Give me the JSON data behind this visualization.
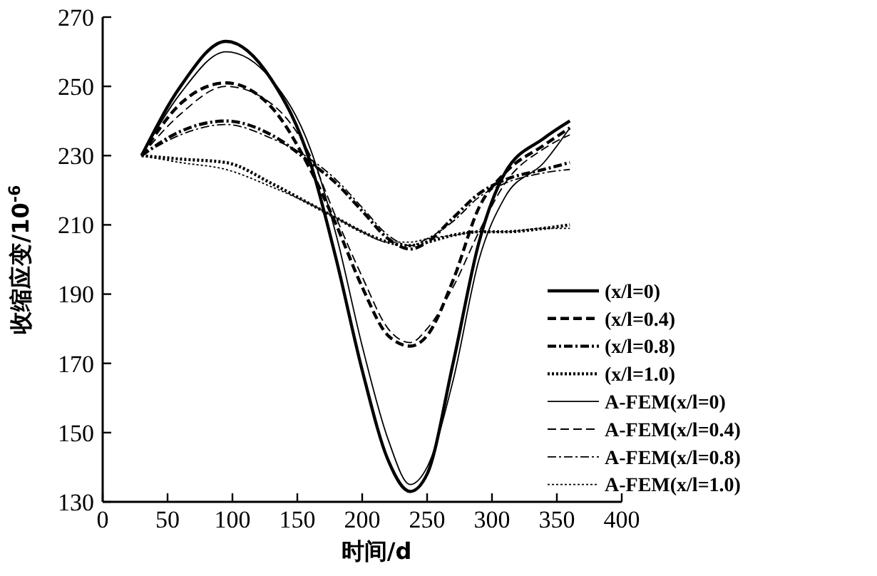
{
  "chart_data": {
    "type": "line",
    "xlabel": "时间/d",
    "ylabel": "收缩应变/10$^{-6}$",
    "xlim": [
      0,
      400
    ],
    "xticks": [
      0,
      50,
      100,
      150,
      200,
      250,
      300,
      350,
      400
    ],
    "ylim": [
      130,
      270
    ],
    "yticks": [
      130,
      150,
      170,
      190,
      210,
      230,
      250,
      270
    ],
    "legend": "right",
    "grid": false,
    "x": [
      30,
      60,
      95,
      130,
      160,
      180,
      200,
      220,
      237,
      250,
      270,
      290,
      310,
      340,
      360
    ],
    "series": [
      {
        "name": "(x/l=0)",
        "color": "#000000",
        "line_style": "solid",
        "values": [
          230,
          250,
          263,
          252,
          228,
          200,
          168,
          142,
          133,
          138,
          170,
          205,
          225,
          235,
          240
        ]
      },
      {
        "name": "(x/l=0.4)",
        "color": "#000000",
        "line_style": "dashed",
        "values": [
          230,
          245,
          251,
          244,
          226,
          210,
          192,
          178,
          175,
          178,
          194,
          215,
          225,
          233,
          238
        ]
      },
      {
        "name": "(x/l=0.8)",
        "color": "#000000",
        "line_style": "dashdot",
        "values": [
          230,
          237,
          240,
          236,
          228,
          222,
          214,
          206,
          203,
          205,
          212,
          219,
          223,
          226,
          228
        ]
      },
      {
        "name": "(x/l=1.0)",
        "color": "#000000",
        "line_style": "dotted",
        "values": [
          230,
          229,
          228,
          222,
          216,
          212,
          208,
          205,
          204,
          205,
          207,
          208,
          208,
          209,
          210
        ]
      },
      {
        "name": "A-FEM(x/l=0)",
        "color": "#000000",
        "line_style": "solid",
        "values": [
          230,
          248,
          260,
          252,
          232,
          207,
          175,
          148,
          135,
          140,
          165,
          200,
          218,
          228,
          238
        ]
      },
      {
        "name": "A-FEM(x/l=0.4)",
        "color": "#000000",
        "line_style": "dashed",
        "values": [
          230,
          242,
          250,
          245,
          230,
          212,
          195,
          180,
          176,
          180,
          192,
          208,
          222,
          232,
          236
        ]
      },
      {
        "name": "A-FEM(x/l=0.8)",
        "color": "#000000",
        "line_style": "dashdot",
        "values": [
          230,
          236,
          239,
          235,
          229,
          223,
          215,
          207,
          204,
          206,
          211,
          218,
          222,
          225,
          226
        ]
      },
      {
        "name": "A-FEM(x/l=1.0)",
        "color": "#000000",
        "line_style": "dotted",
        "values": [
          230,
          228,
          226,
          221,
          216,
          212,
          208,
          205,
          205,
          206,
          207,
          208,
          208,
          209,
          209
        ]
      }
    ]
  }
}
